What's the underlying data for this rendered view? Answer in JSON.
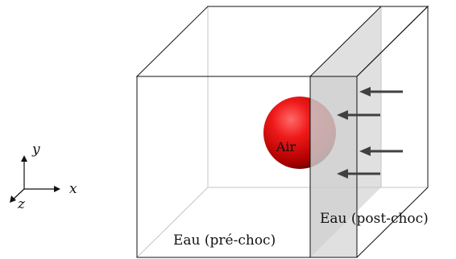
{
  "labels": {
    "sphere": "Air",
    "pre_shock_region": "Eau (pré-choc)",
    "post_shock_region": "Eau (post-choc)"
  },
  "axes": {
    "x": "x",
    "y": "y",
    "z": "z"
  },
  "colors": {
    "sphere": "#d41010",
    "shock_layer": "#cccccc",
    "arrows": "#404040",
    "hidden_edges": "#c4c4c4",
    "visible_edges": "#111111"
  },
  "shock_arrow_count": 4
}
